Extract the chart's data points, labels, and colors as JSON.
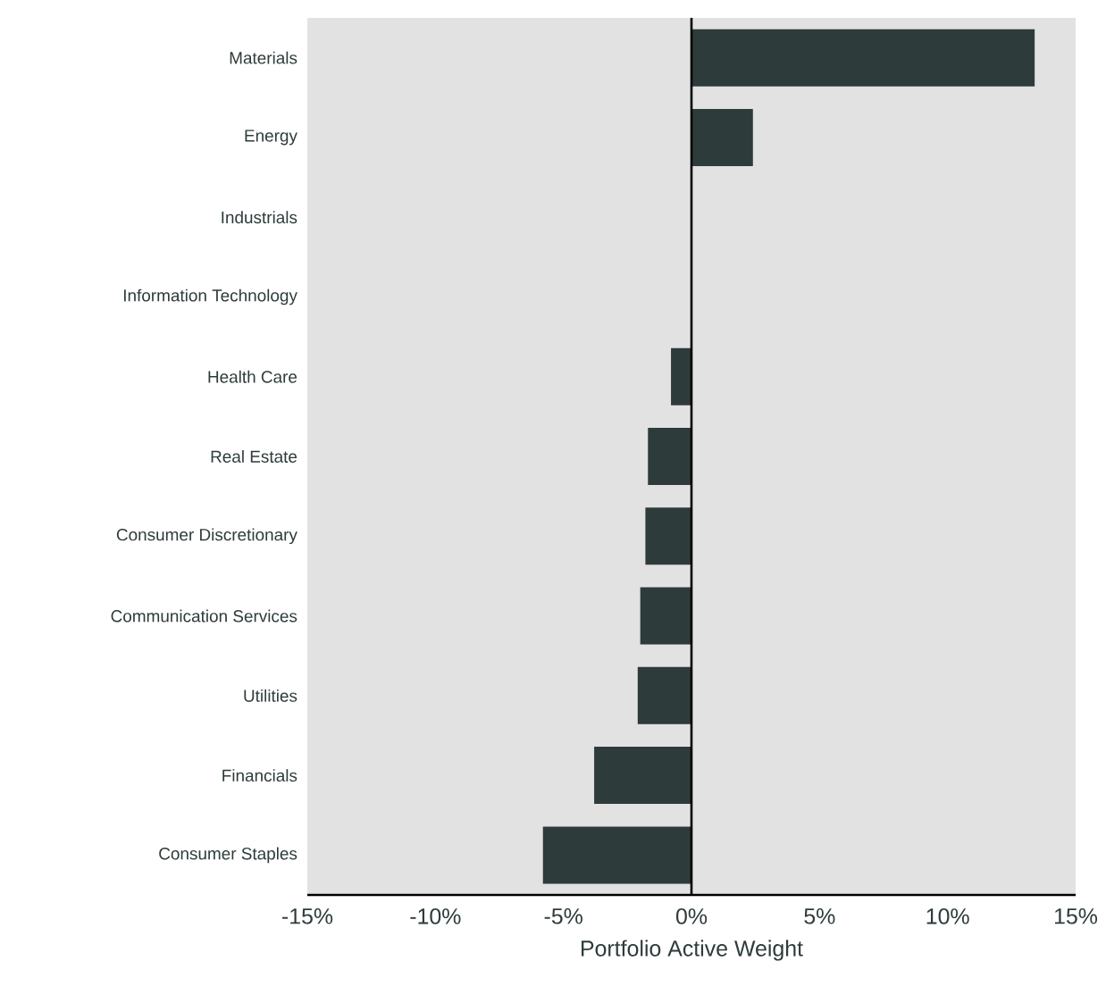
{
  "chart_data": {
    "type": "bar",
    "orientation": "horizontal",
    "xlabel": "Portfolio Active Weight",
    "categories": [
      "Materials",
      "Energy",
      "Industrials",
      "Information Technology",
      "Health Care",
      "Real Estate",
      "Consumer Discretionary",
      "Communication Services",
      "Utilities",
      "Financials",
      "Consumer Staples"
    ],
    "values": [
      13.4,
      2.4,
      0,
      0,
      -0.8,
      -1.7,
      -1.8,
      -2.0,
      -2.1,
      -3.8,
      -5.8
    ],
    "color": "#2e3b3b",
    "xlim": [
      -15,
      15
    ],
    "xticks": [
      {
        "value": -15,
        "label": "-15%"
      },
      {
        "value": -10,
        "label": "-10%"
      },
      {
        "value": -5,
        "label": "-5%"
      },
      {
        "value": 0,
        "label": "0%"
      },
      {
        "value": 5,
        "label": "5%"
      },
      {
        "value": 10,
        "label": "10%"
      },
      {
        "value": 15,
        "label": "15%"
      }
    ],
    "ref_lines": [
      {
        "axis": "x",
        "value": 0,
        "color": "#000000"
      }
    ],
    "grid": false
  }
}
